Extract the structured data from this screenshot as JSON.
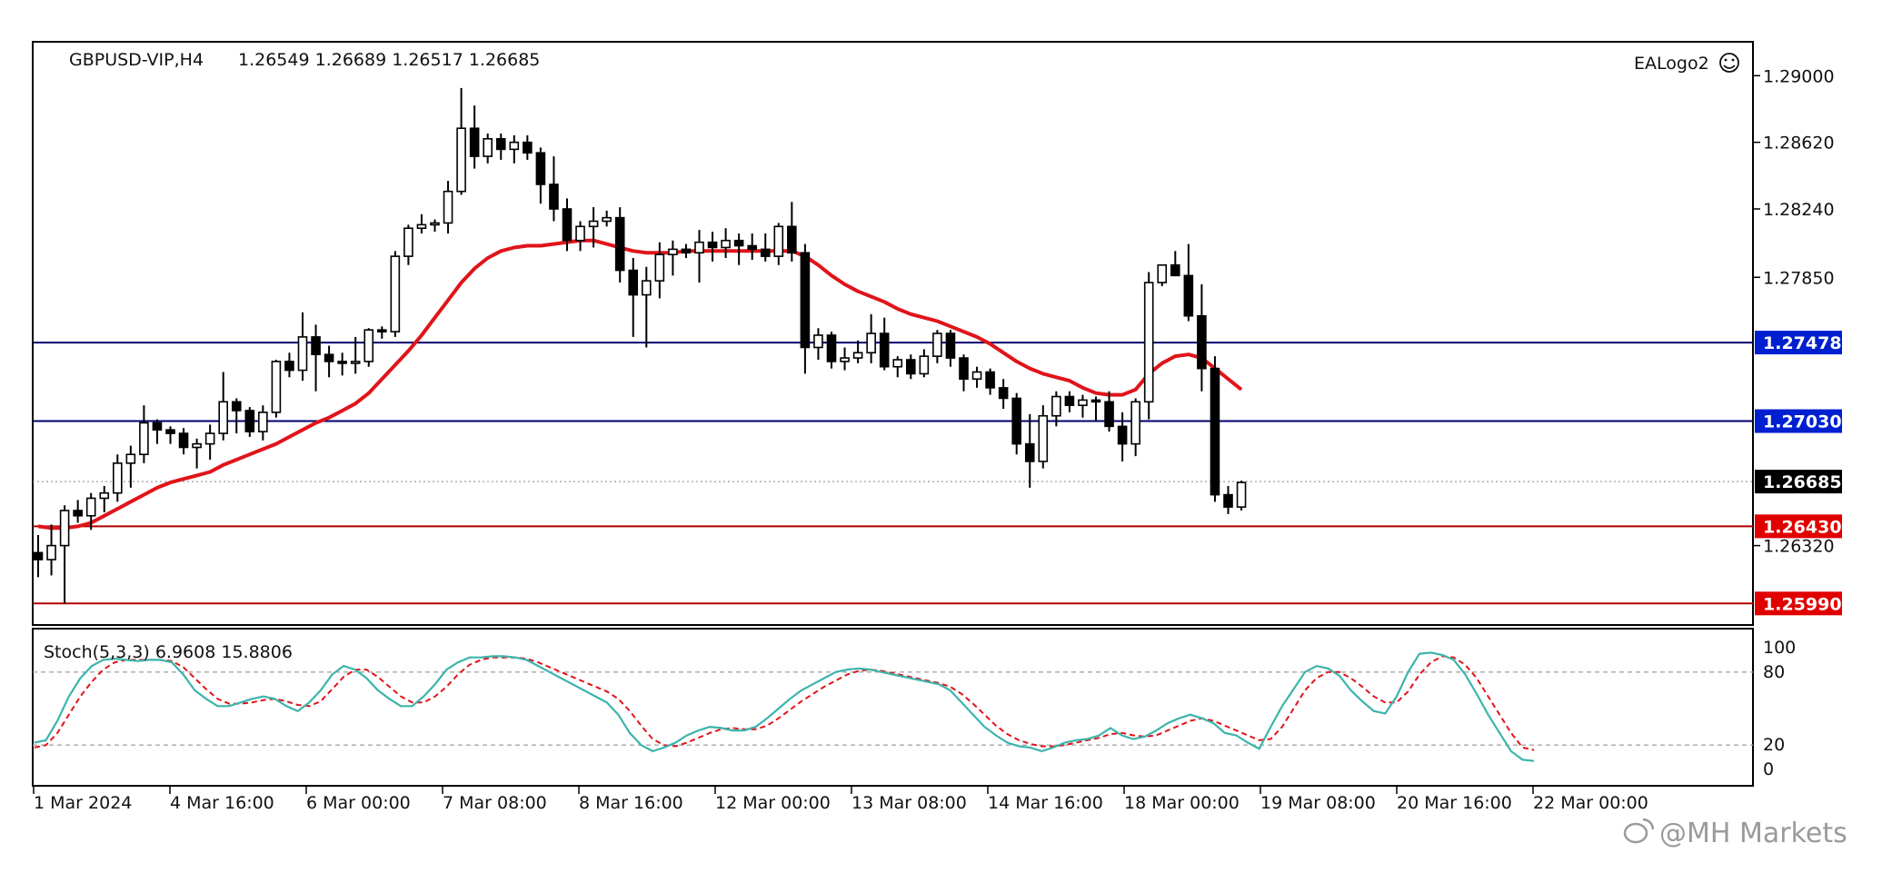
{
  "header": {
    "symbol": "GBPUSD-VIP,H4",
    "ohlc": "1.26549 1.26689 1.26517 1.26685",
    "ea_logo": "EALogo2",
    "ea_icon": "smiley-icon"
  },
  "watermark": {
    "icon": "weibo-icon",
    "text": "@MH Markets"
  },
  "colors": {
    "candle_outline": "#000000",
    "bear_fill": "#000000",
    "bull_fill": "#ffffff",
    "ma_line": "#e0141a",
    "resistance_line": "#00006e",
    "support_line": "#b00000",
    "stoch_main": "#3cb4ac",
    "stoch_signal": "#e0141a",
    "price_label_bg": "#000000",
    "resistance_label_bg": "#0020d0",
    "support_label_bg": "#e00000"
  },
  "chart_data": [
    {
      "type": "candlestick",
      "title": "GBPUSD-VIP,H4",
      "y_range": [
        1.2595,
        1.291
      ],
      "y_ticks": [
        "1.29000",
        "1.28620",
        "1.28240",
        "1.27850",
        "1.26320"
      ],
      "x_tick_labels": [
        "1 Mar 2024",
        "4 Mar 16:00",
        "6 Mar 00:00",
        "7 Mar 08:00",
        "8 Mar 16:00",
        "12 Mar 00:00",
        "13 Mar 08:00",
        "14 Mar 16:00",
        "18 Mar 00:00",
        "19 Mar 08:00",
        "20 Mar 16:00",
        "22 Mar 00:00"
      ],
      "horizontal_levels": [
        {
          "value": 1.27478,
          "label": "1.27478",
          "style": "resistance"
        },
        {
          "value": 1.2703,
          "label": "1.27030",
          "style": "resistance"
        },
        {
          "value": 1.2643,
          "label": "1.26430",
          "style": "support"
        },
        {
          "value": 1.2599,
          "label": "1.25990",
          "style": "support"
        }
      ],
      "current_price": {
        "value": 1.26685,
        "label": "1.26685"
      },
      "candles": [
        [
          1.2628,
          1.2638,
          1.2614,
          1.2624
        ],
        [
          1.2624,
          1.2644,
          1.2615,
          1.2632
        ],
        [
          1.2632,
          1.2655,
          1.2599,
          1.2652
        ],
        [
          1.2652,
          1.2658,
          1.2645,
          1.2649
        ],
        [
          1.2649,
          1.2662,
          1.2641,
          1.2659
        ],
        [
          1.2659,
          1.2666,
          1.2651,
          1.2662
        ],
        [
          1.2662,
          1.2684,
          1.2657,
          1.2679
        ],
        [
          1.2679,
          1.2689,
          1.2665,
          1.2684
        ],
        [
          1.2684,
          1.2712,
          1.2679,
          1.2702
        ],
        [
          1.2702,
          1.2704,
          1.269,
          1.2698
        ],
        [
          1.2698,
          1.27,
          1.269,
          1.2696
        ],
        [
          1.2696,
          1.2699,
          1.2684,
          1.2688
        ],
        [
          1.2688,
          1.2693,
          1.2676,
          1.269
        ],
        [
          1.269,
          1.2701,
          1.2681,
          1.2696
        ],
        [
          1.2696,
          1.2731,
          1.2692,
          1.2714
        ],
        [
          1.2714,
          1.2716,
          1.2696,
          1.2709
        ],
        [
          1.2709,
          1.2711,
          1.2694,
          1.2697
        ],
        [
          1.2697,
          1.2712,
          1.2692,
          1.2708
        ],
        [
          1.2708,
          1.2738,
          1.2705,
          1.2737
        ],
        [
          1.2737,
          1.2742,
          1.2728,
          1.2732
        ],
        [
          1.2732,
          1.2765,
          1.2726,
          1.2751
        ],
        [
          1.2751,
          1.2758,
          1.272,
          1.2741
        ],
        [
          1.2741,
          1.2746,
          1.2728,
          1.2737
        ],
        [
          1.2737,
          1.2742,
          1.2729,
          1.2736
        ],
        [
          1.2736,
          1.2751,
          1.273,
          1.2737
        ],
        [
          1.2737,
          1.2756,
          1.2734,
          1.2755
        ],
        [
          1.2755,
          1.2757,
          1.275,
          1.2754
        ],
        [
          1.2754,
          1.28,
          1.2751,
          1.2797
        ],
        [
          1.2797,
          1.2815,
          1.2792,
          1.2813
        ],
        [
          1.2813,
          1.2821,
          1.281,
          1.2815
        ],
        [
          1.2815,
          1.2818,
          1.2811,
          1.2816
        ],
        [
          1.2816,
          1.284,
          1.281,
          1.2834
        ],
        [
          1.2834,
          1.2893,
          1.2832,
          1.287
        ],
        [
          1.287,
          1.2883,
          1.2847,
          1.2854
        ],
        [
          1.2854,
          1.2867,
          1.285,
          1.2864
        ],
        [
          1.2864,
          1.2867,
          1.2852,
          1.2858
        ],
        [
          1.2858,
          1.2866,
          1.285,
          1.2862
        ],
        [
          1.2862,
          1.2866,
          1.2852,
          1.2856
        ],
        [
          1.2856,
          1.2859,
          1.2827,
          1.2838
        ],
        [
          1.2838,
          1.2854,
          1.2817,
          1.2824
        ],
        [
          1.2824,
          1.283,
          1.28,
          1.2806
        ],
        [
          1.2806,
          1.2817,
          1.28,
          1.2814
        ],
        [
          1.2814,
          1.2825,
          1.2802,
          1.2817
        ],
        [
          1.2817,
          1.2823,
          1.2814,
          1.2819
        ],
        [
          1.2819,
          1.2825,
          1.2782,
          1.2789
        ],
        [
          1.2789,
          1.2796,
          1.2751,
          1.2775
        ],
        [
          1.2775,
          1.2791,
          1.2745,
          1.2783
        ],
        [
          1.2783,
          1.2805,
          1.2773,
          1.2798
        ],
        [
          1.2798,
          1.2806,
          1.2786,
          1.2801
        ],
        [
          1.2801,
          1.2804,
          1.2796,
          1.2799
        ],
        [
          1.2799,
          1.2812,
          1.2782,
          1.2805
        ],
        [
          1.2805,
          1.2811,
          1.2794,
          1.2802
        ],
        [
          1.2802,
          1.2813,
          1.2796,
          1.2806
        ],
        [
          1.2806,
          1.281,
          1.2792,
          1.2803
        ],
        [
          1.2803,
          1.281,
          1.2795,
          1.2801
        ],
        [
          1.2801,
          1.281,
          1.2794,
          1.2797
        ],
        [
          1.2797,
          1.2816,
          1.2792,
          1.2814
        ],
        [
          1.2814,
          1.2828,
          1.2794,
          1.2799
        ],
        [
          1.2799,
          1.2804,
          1.273,
          1.2745
        ],
        [
          1.2745,
          1.2756,
          1.2738,
          1.2752
        ],
        [
          1.2752,
          1.2754,
          1.2733,
          1.2737
        ],
        [
          1.2737,
          1.2745,
          1.2732,
          1.2739
        ],
        [
          1.2739,
          1.2749,
          1.2736,
          1.2742
        ],
        [
          1.2742,
          1.2764,
          1.2736,
          1.2753
        ],
        [
          1.2753,
          1.2762,
          1.2732,
          1.2734
        ],
        [
          1.2734,
          1.274,
          1.2728,
          1.2738
        ],
        [
          1.2738,
          1.2741,
          1.2727,
          1.273
        ],
        [
          1.273,
          1.2744,
          1.2728,
          1.274
        ],
        [
          1.274,
          1.2755,
          1.2736,
          1.2753
        ],
        [
          1.2753,
          1.2755,
          1.2734,
          1.2739
        ],
        [
          1.2739,
          1.2741,
          1.272,
          1.2727
        ],
        [
          1.2727,
          1.2734,
          1.2722,
          1.2731
        ],
        [
          1.2731,
          1.2733,
          1.2718,
          1.2722
        ],
        [
          1.2722,
          1.2727,
          1.271,
          1.2716
        ],
        [
          1.2716,
          1.2719,
          1.2684,
          1.269
        ],
        [
          1.269,
          1.2707,
          1.2665,
          1.268
        ],
        [
          1.268,
          1.2712,
          1.2676,
          1.2706
        ],
        [
          1.2706,
          1.272,
          1.27,
          1.2717
        ],
        [
          1.2717,
          1.272,
          1.2708,
          1.2712
        ],
        [
          1.2712,
          1.2718,
          1.2705,
          1.2715
        ],
        [
          1.2715,
          1.2717,
          1.2703,
          1.2714
        ],
        [
          1.2714,
          1.272,
          1.2697,
          1.27
        ],
        [
          1.27,
          1.2708,
          1.268,
          1.269
        ],
        [
          1.269,
          1.2716,
          1.2683,
          1.2714
        ],
        [
          1.2714,
          1.2788,
          1.2704,
          1.2782
        ],
        [
          1.2782,
          1.2792,
          1.278,
          1.2792
        ],
        [
          1.2792,
          1.28,
          1.2786,
          1.2786
        ],
        [
          1.2786,
          1.2804,
          1.276,
          1.2763
        ],
        [
          1.2763,
          1.2781,
          1.272,
          1.2733
        ],
        [
          1.2733,
          1.274,
          1.2657,
          1.2661
        ],
        [
          1.2661,
          1.2666,
          1.265,
          1.2654
        ],
        [
          1.2654,
          1.2669,
          1.2652,
          1.2668
        ]
      ],
      "ma_values": [
        1.2643,
        1.2642,
        1.2642,
        1.2643,
        1.2645,
        1.2649,
        1.2653,
        1.2657,
        1.2661,
        1.2665,
        1.2668,
        1.267,
        1.2672,
        1.2674,
        1.2678,
        1.2681,
        1.2684,
        1.2687,
        1.269,
        1.2694,
        1.2698,
        1.2702,
        1.2705,
        1.2709,
        1.2713,
        1.2719,
        1.2727,
        1.2735,
        1.2743,
        1.2752,
        1.2762,
        1.2772,
        1.2782,
        1.279,
        1.2796,
        1.28,
        1.2802,
        1.2803,
        1.2803,
        1.2804,
        1.2805,
        1.2806,
        1.2806,
        1.2804,
        1.2802,
        1.28,
        1.2799,
        1.2799,
        1.2799,
        1.28,
        1.28,
        1.28,
        1.28,
        1.28,
        1.28,
        1.28,
        1.28,
        1.28,
        1.2797,
        1.2792,
        1.2786,
        1.2781,
        1.2777,
        1.2774,
        1.2771,
        1.2767,
        1.2764,
        1.2762,
        1.276,
        1.2757,
        1.2754,
        1.2751,
        1.2747,
        1.2742,
        1.2737,
        1.2733,
        1.273,
        1.2728,
        1.2726,
        1.2722,
        1.2719,
        1.2718,
        1.2718,
        1.2721,
        1.273,
        1.2736,
        1.274,
        1.2741,
        1.2739,
        1.2733,
        1.2727,
        1.2721
      ]
    },
    {
      "type": "line",
      "title": "Stoch(5,3,3) 6.9608 15.8806",
      "y_range": [
        0,
        100
      ],
      "y_ticks": [
        "100",
        "80",
        "20",
        "0"
      ],
      "levels": [
        80,
        20
      ],
      "series": [
        {
          "name": "main",
          "values": [
            22,
            24,
            40,
            60,
            75,
            85,
            90,
            91,
            90,
            89,
            90,
            90,
            88,
            78,
            65,
            58,
            52,
            52,
            55,
            58,
            60,
            58,
            52,
            48,
            55,
            65,
            78,
            85,
            82,
            75,
            65,
            58,
            52,
            52,
            60,
            70,
            82,
            88,
            92,
            92,
            93,
            93,
            92,
            90,
            85,
            80,
            75,
            70,
            65,
            60,
            55,
            45,
            30,
            20,
            15,
            18,
            22,
            28,
            32,
            35,
            34,
            32,
            32,
            35,
            42,
            50,
            58,
            65,
            70,
            75,
            80,
            82,
            83,
            82,
            80,
            78,
            76,
            74,
            72,
            70,
            65,
            55,
            45,
            35,
            28,
            22,
            19,
            18,
            15,
            18,
            22,
            24,
            25,
            28,
            34,
            28,
            25,
            27,
            32,
            38,
            42,
            45,
            42,
            38,
            30,
            28,
            22,
            17,
            35,
            52,
            66,
            80,
            85,
            83,
            77,
            65,
            56,
            48,
            46,
            60,
            80,
            95,
            96,
            94,
            90,
            78,
            62,
            45,
            30,
            15,
            8,
            7
          ]
        },
        {
          "name": "signal",
          "values": [
            18,
            20,
            30,
            45,
            60,
            72,
            82,
            88,
            90,
            90,
            90,
            90,
            89,
            84,
            75,
            66,
            58,
            54,
            54,
            55,
            57,
            58,
            56,
            53,
            52,
            56,
            66,
            76,
            82,
            82,
            76,
            68,
            60,
            55,
            55,
            60,
            68,
            78,
            86,
            90,
            92,
            92,
            92,
            91,
            88,
            84,
            80,
            76,
            72,
            68,
            64,
            58,
            48,
            36,
            25,
            20,
            19,
            22,
            26,
            30,
            33,
            34,
            33,
            33,
            36,
            42,
            49,
            56,
            62,
            68,
            73,
            78,
            81,
            82,
            81,
            79,
            77,
            75,
            73,
            71,
            68,
            62,
            54,
            45,
            36,
            29,
            24,
            21,
            19,
            19,
            20,
            22,
            24,
            26,
            29,
            30,
            28,
            27,
            28,
            32,
            36,
            40,
            42,
            40,
            36,
            32,
            28,
            24,
            25,
            35,
            50,
            65,
            75,
            80,
            80,
            75,
            68,
            60,
            55,
            55,
            64,
            78,
            88,
            93,
            92,
            86,
            75,
            60,
            45,
            30,
            18,
            16
          ]
        }
      ]
    }
  ]
}
